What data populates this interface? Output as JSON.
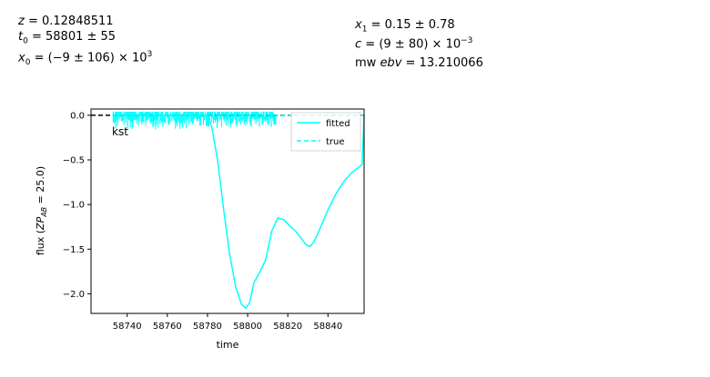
{
  "fit_results": {
    "left": [
      {
        "label": "z",
        "value": " = 0.12848511"
      },
      {
        "label": "t",
        "sub": "0",
        "value": " = 58801 ± 55"
      },
      {
        "label": "x",
        "sub": "0",
        "value": " = (−9 ± 106) × 10",
        "sup": "3"
      }
    ],
    "right": [
      {
        "label": "x",
        "sub": "1",
        "value": " = 0.15 ± 0.78"
      },
      {
        "label": "c",
        "sub": "",
        "value": " = (9 ± 80) × 10",
        "sup": "−3"
      },
      {
        "pre": "mw ",
        "label": "ebv",
        "value": " = 13.210066"
      }
    ]
  },
  "chart_data": {
    "type": "line",
    "band": "kst",
    "xlabel": "time",
    "ylabel": "flux (ZP_AB = 25.0)",
    "ylabel_parts": {
      "pre": "flux (",
      "zp": "ZP",
      "sub": "AB",
      "post": " = 25.0)"
    },
    "xlim": [
      58722,
      58858
    ],
    "ylim": [
      -2.22,
      0.07
    ],
    "xticks": [
      58740,
      58760,
      58780,
      58800,
      58820,
      58840
    ],
    "yticks": [
      0.0,
      -0.5,
      -1.0,
      -1.5,
      -2.0
    ],
    "ytick_labels": [
      "0.0",
      "−0.5",
      "−1.0",
      "−1.5",
      "−2.0"
    ],
    "legend": {
      "position": "top-right",
      "entries": [
        {
          "label": "fitted",
          "style": "solid"
        },
        {
          "label": "true",
          "style": "dashed"
        }
      ]
    },
    "colors": {
      "fitted": "#00ffff",
      "true": "#00ffff",
      "data": "#00ffff",
      "zero_line": "#000000"
    },
    "zero_line": {
      "y": 0.0,
      "style": "dashed"
    },
    "series": [
      {
        "name": "fitted",
        "x": [
          58733,
          58780,
          58782,
          58785,
          58788,
          58791,
          58794,
          58797,
          58799,
          58801,
          58803,
          58806,
          58809,
          58812,
          58815,
          58818,
          58821,
          58824,
          58827,
          58829,
          58831,
          58833,
          58836,
          58840,
          58844,
          58848,
          58852,
          58856,
          58857,
          58858
        ],
        "y": [
          0.0,
          0.0,
          -0.12,
          -0.5,
          -1.05,
          -1.55,
          -1.92,
          -2.12,
          -2.16,
          -2.1,
          -1.88,
          -1.76,
          -1.62,
          -1.3,
          -1.15,
          -1.17,
          -1.24,
          -1.3,
          -1.39,
          -1.45,
          -1.47,
          -1.42,
          -1.27,
          -1.06,
          -0.88,
          -0.74,
          -0.64,
          -0.57,
          -0.55,
          0.0
        ]
      },
      {
        "name": "true",
        "x": [
          58733,
          58858
        ],
        "y": [
          0.0,
          0.0
        ]
      }
    ],
    "observations": {
      "x_range": [
        58733,
        58814
      ],
      "y_spread": [
        -0.2,
        0.04
      ]
    }
  }
}
